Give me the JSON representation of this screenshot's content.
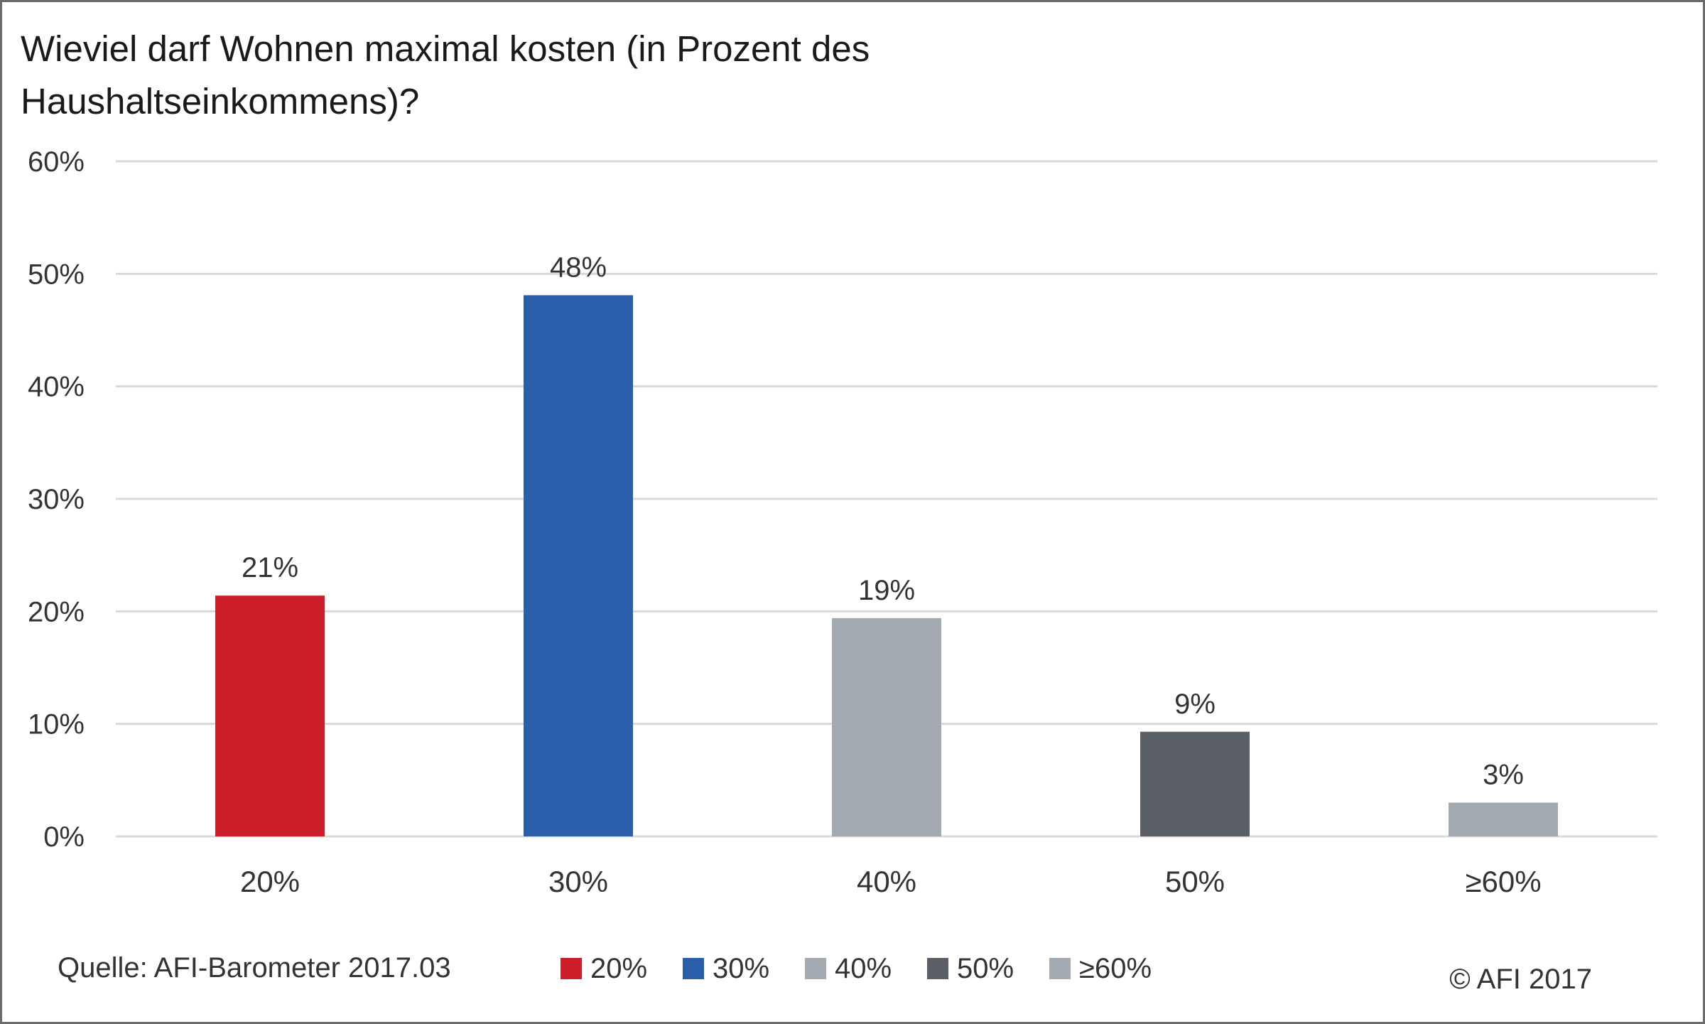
{
  "chart_data": {
    "type": "bar",
    "title_lines": [
      "Wieviel darf Wohnen maximal kosten (in Prozent des",
      "Haushaltseinkommens)?"
    ],
    "categories": [
      "20%",
      "30%",
      "40%",
      "50%",
      "≥60%"
    ],
    "values": [
      21.4,
      48.1,
      19.4,
      9.3,
      3.0
    ],
    "data_labels": [
      "21%",
      "48%",
      "19%",
      "9%",
      "3%"
    ],
    "colors": [
      "#cc1f2b",
      "#2b5fab",
      "#a3a9b1",
      "#5b5f66",
      "#a3a9b1"
    ],
    "ylim": [
      0,
      60
    ],
    "yticks": [
      0,
      10,
      20,
      30,
      40,
      50,
      60
    ],
    "ytick_labels": [
      "0%",
      "10%",
      "20%",
      "30%",
      "40%",
      "50%",
      "60%"
    ],
    "grid": true,
    "legend": {
      "position": "bottom",
      "entries": [
        "20%",
        "30%",
        "40%",
        "50%",
        "≥60%"
      ]
    },
    "source": "Quelle: AFI-Barometer 2017.03",
    "copyright": "© AFI 2017"
  }
}
